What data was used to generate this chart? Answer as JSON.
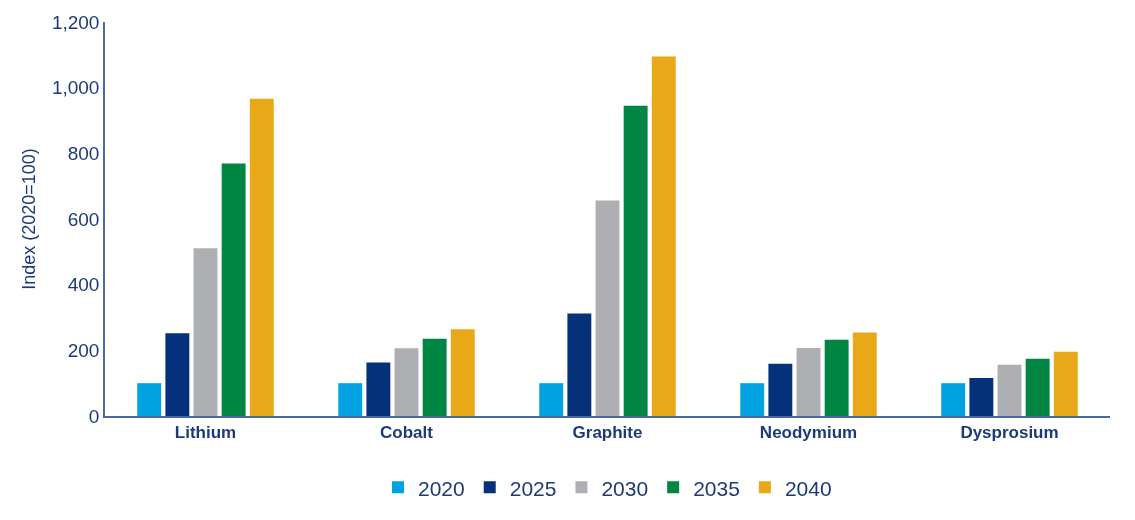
{
  "chart_data": {
    "type": "bar",
    "ylabel": "Index (2020=100)",
    "categories": [
      "Lithium",
      "Cobalt",
      "Graphite",
      "Neodymium",
      "Dysprosium"
    ],
    "series": [
      {
        "name": "2020",
        "color": "#00a3e0",
        "values": [
          100,
          100,
          100,
          100,
          100
        ]
      },
      {
        "name": "2025",
        "color": "#05317a",
        "values": [
          252,
          163,
          312,
          159,
          116
        ]
      },
      {
        "name": "2030",
        "color": "#adafb2",
        "values": [
          511,
          206,
          656,
          207,
          156
        ]
      },
      {
        "name": "2035",
        "color": "#008542",
        "values": [
          769,
          235,
          945,
          232,
          174
        ]
      },
      {
        "name": "2040",
        "color": "#e8a817",
        "values": [
          966,
          264,
          1095,
          254,
          196
        ]
      }
    ],
    "ylim": [
      0,
      1200
    ],
    "yticks": [
      0,
      200,
      400,
      600,
      800,
      {
        "value": 1000,
        "label": "1,000"
      },
      {
        "value": 1200,
        "label": "1,200"
      }
    ],
    "grid": false,
    "legend": "bottom"
  }
}
